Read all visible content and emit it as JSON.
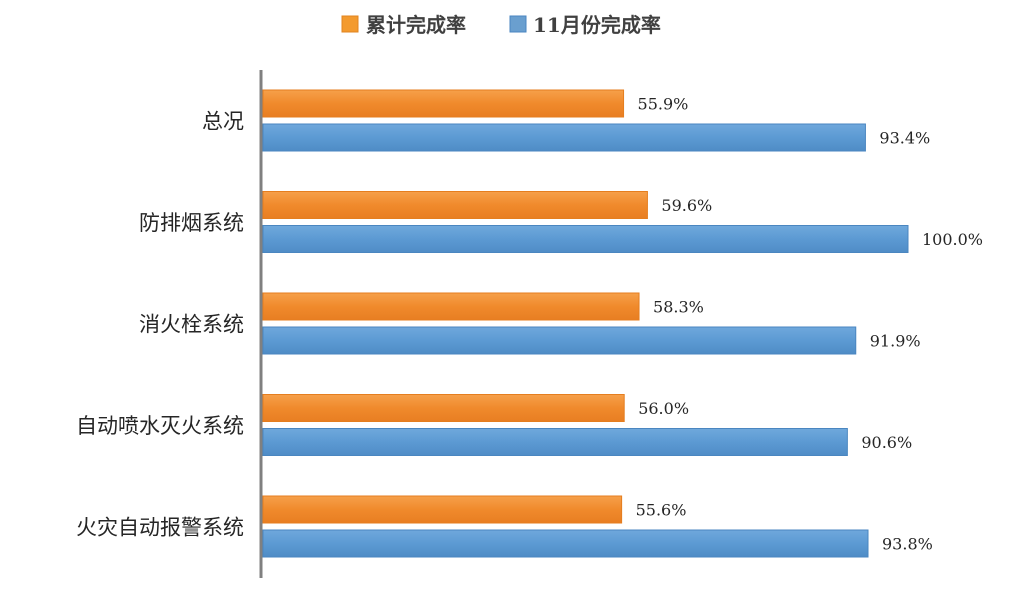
{
  "chart_data": {
    "type": "bar",
    "orientation": "horizontal",
    "categories": [
      "总况",
      "防排烟系统",
      "消火栓系统",
      "自动喷水灭火系统",
      "火灾自动报警系统"
    ],
    "series": [
      {
        "name": "累计完成率",
        "values": [
          55.9,
          59.6,
          58.3,
          56.0,
          55.6
        ],
        "labels": [
          "55.9%",
          "59.6%",
          "58.3%",
          "56.0%",
          "55.6%"
        ],
        "color": "#F0882A"
      },
      {
        "name": "11月份完成率",
        "values": [
          93.4,
          100.0,
          91.9,
          90.6,
          93.8
        ],
        "labels": [
          "93.4%",
          "100.0%",
          "91.9%",
          "90.6%",
          "93.8%"
        ],
        "color": "#5B9BD5"
      }
    ],
    "xlim": [
      0,
      100
    ],
    "legend_position": "top",
    "grid": false
  }
}
